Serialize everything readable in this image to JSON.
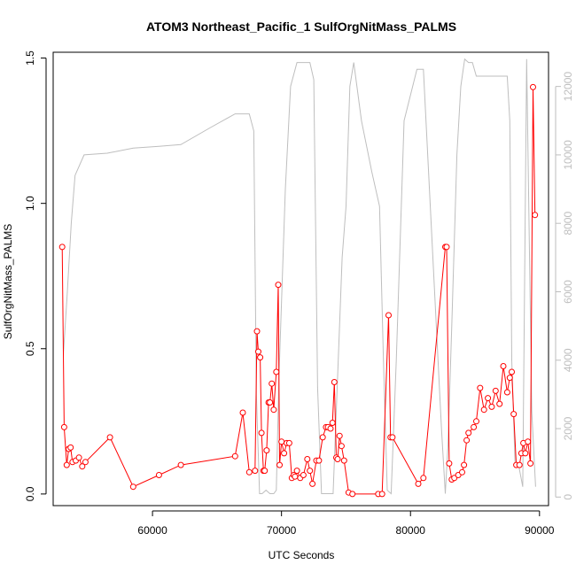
{
  "chart_data": {
    "type": "line",
    "title": "ATOM3 Northeast_Pacific_1 SulfOrgNitMass_PALMS",
    "xlabel": "UTC Seconds",
    "ylabel": "SulfOrgNitMass_PALMS",
    "y2label": "",
    "xlim": [
      52300,
      90700
    ],
    "ylim": [
      -0.04,
      1.52
    ],
    "y2lim": [
      -250,
      13000
    ],
    "x_ticks": [
      60000,
      70000,
      80000,
      90000
    ],
    "x_tick_labels": [
      "60000",
      "70000",
      "80000",
      "90000"
    ],
    "y_ticks": [
      0.0,
      0.5,
      1.0,
      1.5
    ],
    "y_tick_labels": [
      "0.0",
      "0.5",
      "1.0",
      "1.5"
    ],
    "y2_ticks": [
      0,
      2000,
      4000,
      6000,
      8000,
      10000,
      12000
    ],
    "y2_tick_labels": [
      "0",
      "2000",
      "4000",
      "6000",
      "8000",
      "10000",
      "12000"
    ],
    "grid": false,
    "colors": {
      "primary": "#ff0000",
      "secondary": "#bebebe",
      "axis": "#000000"
    },
    "series": [
      {
        "axis": "left",
        "color": "#ff0000",
        "markers": "open-circle",
        "x": [
          53000,
          53150,
          53350,
          53500,
          53650,
          53800,
          54050,
          54300,
          54550,
          54800,
          56700,
          58500,
          60500,
          62200,
          66400,
          67000,
          67500,
          67950,
          68100,
          68200,
          68350,
          68450,
          68600,
          68700,
          68850,
          69000,
          69100,
          69250,
          69400,
          69600,
          69750,
          69850,
          70000,
          70200,
          70400,
          70600,
          70800,
          70950,
          71050,
          71200,
          71450,
          71700,
          72000,
          72200,
          72400,
          72700,
          72900,
          73200,
          73450,
          73600,
          73800,
          73950,
          74100,
          74250,
          74350,
          74500,
          74650,
          74850,
          75200,
          75500,
          77500,
          77800,
          78300,
          78450,
          78600,
          80600,
          81000,
          82700,
          82800,
          83000,
          83200,
          83400,
          83700,
          84000,
          84150,
          84350,
          84500,
          84900,
          85100,
          85400,
          85700,
          86000,
          86300,
          86600,
          86900,
          87200,
          87500,
          87700,
          87850,
          88000,
          88200,
          88450,
          88600,
          88750,
          88900,
          89100,
          89300,
          89500,
          89650
        ],
        "y": [
          0.85,
          0.23,
          0.1,
          0.155,
          0.16,
          0.11,
          0.115,
          0.125,
          0.095,
          0.11,
          0.195,
          0.025,
          0.065,
          0.1,
          0.13,
          0.28,
          0.075,
          0.08,
          0.56,
          0.49,
          0.47,
          0.21,
          0.08,
          0.08,
          0.15,
          0.315,
          0.315,
          0.38,
          0.29,
          0.42,
          0.72,
          0.1,
          0.18,
          0.14,
          0.175,
          0.175,
          0.055,
          0.065,
          0.06,
          0.08,
          0.055,
          0.065,
          0.12,
          0.08,
          0.035,
          0.115,
          0.115,
          0.195,
          0.23,
          0.23,
          0.225,
          0.245,
          0.385,
          0.125,
          0.12,
          0.2,
          0.165,
          0.115,
          0.005,
          0.0,
          0.0,
          0.0,
          0.615,
          0.195,
          0.195,
          0.035,
          0.055,
          0.85,
          0.85,
          0.105,
          0.05,
          0.055,
          0.065,
          0.075,
          0.1,
          0.185,
          0.21,
          0.23,
          0.25,
          0.365,
          0.29,
          0.33,
          0.3,
          0.355,
          0.31,
          0.44,
          0.35,
          0.4,
          0.42,
          0.275,
          0.1,
          0.1,
          0.14,
          0.175,
          0.14,
          0.18,
          0.105,
          1.4,
          0.96
        ]
      },
      {
        "axis": "right",
        "color": "#bebebe",
        "markers": "none",
        "x": [
          53100,
          53400,
          53700,
          54000,
          54700,
          56500,
          58500,
          60500,
          62200,
          64500,
          66400,
          67500,
          67850,
          68050,
          68300,
          68500,
          68800,
          69100,
          69400,
          69600,
          69800,
          70300,
          70700,
          71200,
          71600,
          72200,
          72500,
          72800,
          73100,
          73500,
          74000,
          74400,
          74700,
          75000,
          75300,
          75600,
          76200,
          77000,
          77600,
          77900,
          78200,
          78500,
          78900,
          79500,
          80500,
          81000,
          82400,
          82700,
          82900,
          83200,
          83600,
          83900,
          84200,
          84500,
          84800,
          85100,
          86000,
          87000,
          87500,
          87700,
          87850,
          88100,
          88400,
          88700,
          89000,
          89400,
          89700
        ],
        "y": [
          4200,
          6000,
          8000,
          9400,
          10000,
          10050,
          10200,
          10250,
          10300,
          10800,
          11200,
          11200,
          10700,
          3000,
          100,
          100,
          200,
          100,
          100,
          200,
          3500,
          9000,
          12000,
          12700,
          12700,
          12700,
          12200,
          3200,
          100,
          100,
          100,
          4000,
          7000,
          8500,
          12000,
          12700,
          11000,
          9500,
          8500,
          4000,
          200,
          100,
          4000,
          11000,
          12500,
          12500,
          2000,
          100,
          1500,
          5000,
          10000,
          12000,
          12800,
          12700,
          12700,
          12300,
          12300,
          12300,
          12300,
          11000,
          4000,
          1000,
          900,
          300,
          12800,
          2500,
          300
        ]
      }
    ]
  }
}
